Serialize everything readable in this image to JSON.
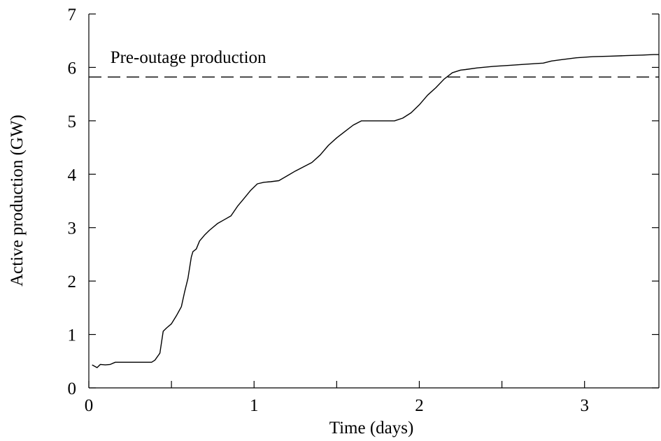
{
  "chart_data": {
    "type": "line",
    "title": "",
    "xlabel": "Time (days)",
    "ylabel": "Active production (GW)",
    "xlim": [
      0,
      3.45
    ],
    "ylim": [
      0,
      7
    ],
    "xticks": [
      0,
      1,
      2,
      3
    ],
    "yticks": [
      0,
      1,
      2,
      3,
      4,
      5,
      6,
      7
    ],
    "grid": false,
    "legend": "none",
    "series": [
      {
        "x": [
          0.02,
          0.05,
          0.07,
          0.1,
          0.13,
          0.16,
          0.2,
          0.25,
          0.3,
          0.35,
          0.38,
          0.4,
          0.43,
          0.45,
          0.47,
          0.5,
          0.53,
          0.56,
          0.58,
          0.6,
          0.62,
          0.63,
          0.65,
          0.67,
          0.7,
          0.73,
          0.78,
          0.82,
          0.86,
          0.9,
          0.94,
          0.98,
          1.02,
          1.06,
          1.1,
          1.15,
          1.2,
          1.25,
          1.3,
          1.35,
          1.4,
          1.45,
          1.5,
          1.55,
          1.6,
          1.65,
          1.68,
          1.72,
          1.76,
          1.8,
          1.85,
          1.9,
          1.95,
          2.0,
          2.05,
          2.1,
          2.15,
          2.2,
          2.25,
          2.28,
          2.35,
          2.45,
          2.55,
          2.65,
          2.75,
          2.8,
          2.85,
          2.95,
          3.05,
          3.15,
          3.25,
          3.35,
          3.42,
          3.45
        ],
        "y": [
          0.43,
          0.38,
          0.44,
          0.43,
          0.44,
          0.48,
          0.48,
          0.48,
          0.48,
          0.48,
          0.48,
          0.52,
          0.65,
          1.06,
          1.12,
          1.2,
          1.35,
          1.52,
          1.8,
          2.05,
          2.45,
          2.55,
          2.6,
          2.75,
          2.86,
          2.95,
          3.08,
          3.15,
          3.22,
          3.4,
          3.55,
          3.7,
          3.82,
          3.85,
          3.86,
          3.88,
          3.97,
          4.06,
          4.14,
          4.22,
          4.36,
          4.54,
          4.68,
          4.8,
          4.92,
          5.0,
          5.0,
          5.0,
          5.0,
          5.0,
          5.0,
          5.05,
          5.15,
          5.3,
          5.48,
          5.62,
          5.78,
          5.9,
          5.95,
          5.96,
          5.99,
          6.02,
          6.04,
          6.06,
          6.08,
          6.12,
          6.14,
          6.18,
          6.2,
          6.21,
          6.22,
          6.23,
          6.24,
          6.24
        ]
      }
    ],
    "reference_lines": [
      {
        "orientation": "horizontal",
        "y": 5.82,
        "style": "dashed",
        "label": "Pre-outage production"
      }
    ]
  }
}
